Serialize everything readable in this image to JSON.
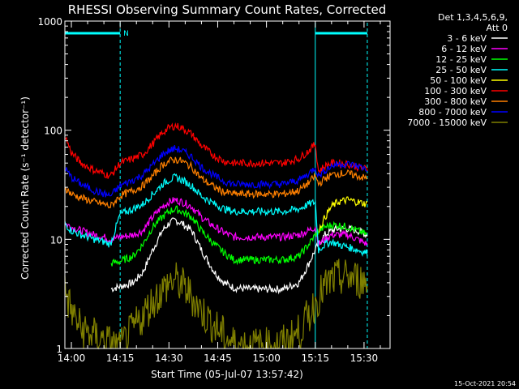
{
  "chart_data": {
    "type": "line",
    "title": "RHESSI Observing Summary Count Rates, Corrected",
    "xlabel": "Start Time (05-Jul-07 13:57:42)",
    "ylabel": "Corrected Count Rate (s⁻¹ detector⁻¹)",
    "yscale": "log",
    "ylim": [
      1,
      1000
    ],
    "xlim_minutes": [
      -2,
      98
    ],
    "x_ticks": [
      {
        "t": 0,
        "label": "14:00"
      },
      {
        "t": 15,
        "label": "14:15"
      },
      {
        "t": 30,
        "label": "14:30"
      },
      {
        "t": 45,
        "label": "14:45"
      },
      {
        "t": 60,
        "label": "15:00"
      },
      {
        "t": 75,
        "label": "15:15"
      },
      {
        "t": 90,
        "label": "15:30"
      }
    ],
    "y_ticks": [
      {
        "v": 1,
        "label": "1"
      },
      {
        "v": 10,
        "label": "10"
      },
      {
        "v": 100,
        "label": "100"
      },
      {
        "v": 1000,
        "label": "1000"
      }
    ],
    "legend_header": [
      "Det 1,3,4,5,6,9,",
      "Att 0"
    ],
    "legend_position": "right",
    "flag_label": "N",
    "footer_timestamp": "15-Oct-2021 20:54",
    "colors": {
      "background": "#000000",
      "axes": "#ffffff",
      "flag": "#00ffff",
      "guide": "#00ffff"
    },
    "guides_minutes": [
      -2,
      15,
      75,
      91
    ],
    "flags": [
      {
        "start": -2,
        "end": 15
      },
      {
        "start": 75,
        "end": 91
      }
    ],
    "x": [
      -2,
      0,
      3,
      7,
      10,
      12,
      15,
      19,
      22,
      25,
      28,
      30,
      32,
      34,
      37,
      40,
      44,
      47,
      50,
      55,
      60,
      65,
      70,
      73,
      75,
      76,
      78,
      80,
      82,
      85,
      88,
      91
    ],
    "series": [
      {
        "name": "3 - 6 keV",
        "color": "#ffffff",
        "values": [
          null,
          null,
          null,
          null,
          null,
          3.5,
          3.7,
          4,
          5,
          8,
          12,
          14,
          15,
          14,
          12,
          8,
          5,
          4,
          3.6,
          3.5,
          3.5,
          3.5,
          4,
          6,
          8,
          9,
          11,
          12,
          12.5,
          12.5,
          12,
          11
        ]
      },
      {
        "name": "6 - 12 keV",
        "color": "#ff00ff",
        "values": [
          14,
          13,
          12,
          11,
          10.5,
          10,
          10.5,
          11,
          12,
          16,
          20,
          22,
          23,
          22,
          20,
          16,
          13,
          11.5,
          10.5,
          10.5,
          10.5,
          10.5,
          11,
          12,
          13,
          9,
          10,
          11,
          11,
          11,
          10,
          9
        ]
      },
      {
        "name": "12 - 25 keV",
        "color": "#00ff00",
        "values": [
          null,
          null,
          null,
          null,
          null,
          6,
          6.3,
          7,
          9,
          13,
          16,
          18,
          19,
          18,
          16,
          12,
          9,
          7.5,
          6.5,
          6.5,
          6.5,
          6.5,
          7,
          9,
          11,
          12,
          13,
          13.5,
          13.5,
          13,
          12,
          11
        ]
      },
      {
        "name": "25 - 50 keV",
        "color": "#00ffff",
        "values": [
          14,
          12,
          11,
          10,
          9.5,
          9,
          17,
          19,
          21,
          26,
          32,
          35,
          37,
          35,
          31,
          25,
          21,
          19,
          18,
          18,
          18,
          18,
          19,
          21,
          22,
          8,
          9,
          9.5,
          9,
          8.5,
          8,
          7.5
        ]
      },
      {
        "name": "50 - 100 keV",
        "color": "#ffff00",
        "values": [
          null,
          null,
          null,
          null,
          null,
          null,
          null,
          null,
          null,
          null,
          null,
          null,
          null,
          null,
          null,
          null,
          null,
          null,
          null,
          null,
          null,
          null,
          null,
          null,
          null,
          12,
          16,
          20,
          22,
          23,
          22,
          21
        ]
      },
      {
        "name": "100 - 300 keV",
        "color": "#ff0000",
        "values": [
          90,
          62,
          50,
          43,
          40,
          38,
          50,
          55,
          60,
          75,
          95,
          105,
          110,
          105,
          92,
          72,
          58,
          52,
          50,
          50,
          50,
          50,
          55,
          65,
          75,
          42,
          47,
          50,
          50,
          49,
          46,
          44
        ]
      },
      {
        "name": "300 - 800 keV",
        "color": "#ff8000",
        "values": [
          30,
          26,
          24,
          22,
          21,
          20,
          25,
          28,
          31,
          38,
          48,
          52,
          54,
          52,
          46,
          36,
          30,
          27,
          26,
          26,
          26,
          26,
          28,
          33,
          38,
          32,
          36,
          39,
          40,
          40,
          38,
          36
        ]
      },
      {
        "name": "800 - 7000 keV",
        "color": "#0000ff",
        "values": [
          45,
          37,
          32,
          28,
          26,
          25,
          31,
          35,
          39,
          48,
          60,
          65,
          68,
          65,
          57,
          46,
          38,
          34,
          32,
          32,
          32,
          32,
          35,
          40,
          46,
          38,
          43,
          47,
          49,
          49,
          47,
          44
        ]
      },
      {
        "name": "7000 - 15000 keV",
        "color": "#808000",
        "values": [
          3.4,
          2.2,
          1.5,
          1.3,
          1.2,
          1.1,
          1.0,
          1.5,
          2.0,
          2.7,
          3.4,
          4.0,
          4.2,
          3.8,
          3.0,
          2.2,
          1.6,
          1.3,
          1.1,
          1.05,
          1.05,
          1.1,
          1.4,
          2.0,
          2.6,
          3.0,
          3.6,
          4.2,
          4.4,
          4.5,
          4.3,
          4.0
        ]
      }
    ]
  }
}
